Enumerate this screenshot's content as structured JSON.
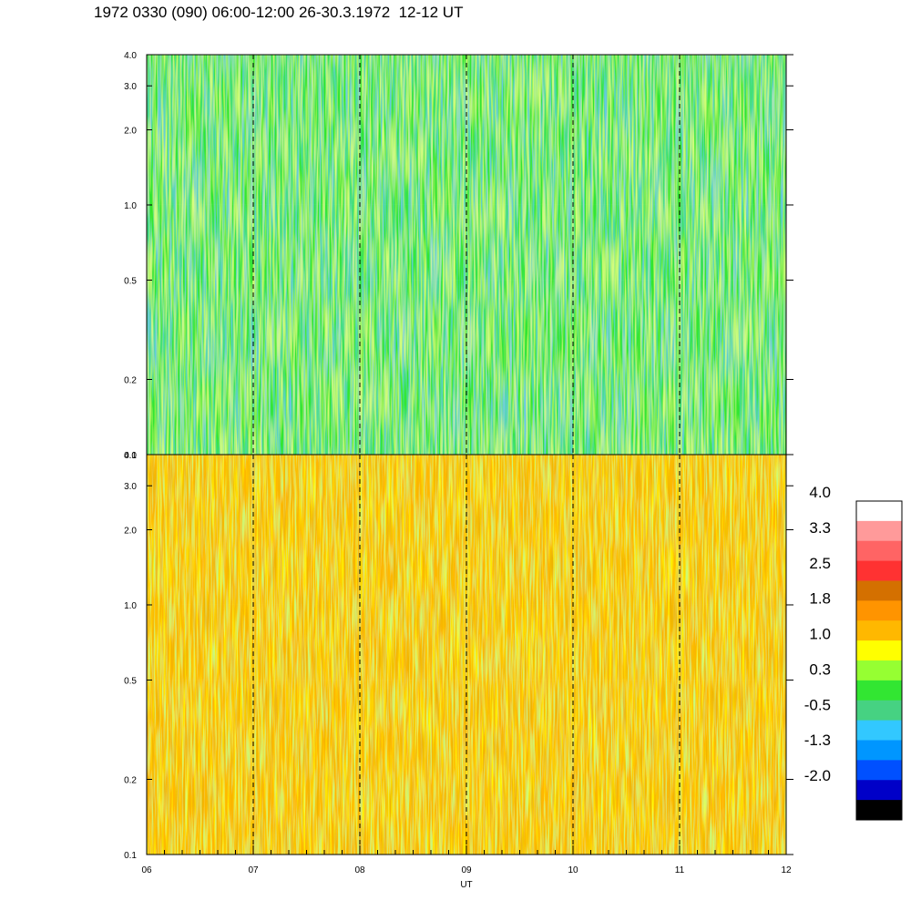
{
  "title": "1972 0330 (090) 06:00-12:00 26-30.3.1972  12-12 UT",
  "chart_data": {
    "type": "heatmap",
    "title": "1972 0330 (090) 06:00-12:00 26-30.3.1972  12-12 UT",
    "xlabel": "UT",
    "x_ticks": [
      "06",
      "07",
      "08",
      "09",
      "10",
      "11",
      "12"
    ],
    "xlim": [
      6,
      12
    ],
    "y_scale": "log",
    "ylim": [
      0.1,
      4.0
    ],
    "y_ticks": [
      {
        "value": 0.1,
        "label": "0.1"
      },
      {
        "value": 0.2,
        "label": "0.2"
      },
      {
        "value": 0.5,
        "label": "0.5"
      },
      {
        "value": 1.0,
        "label": "1.0"
      },
      {
        "value": 2.0,
        "label": "2.0"
      },
      {
        "value": 3.0,
        "label": "3.0"
      },
      {
        "value": 4.0,
        "label": "4.0"
      }
    ],
    "hour_markers": [
      7,
      8,
      9,
      10,
      11
    ],
    "panels": [
      {
        "name": "upper",
        "dominant_level_by_frequency": [
          {
            "freq_range": [
              0.1,
              0.5
            ],
            "level": 0.3
          },
          {
            "freq_range": [
              0.5,
              1.0
            ],
            "level": 0.5
          },
          {
            "freq_range": [
              1.0,
              4.0
            ],
            "level": 0.6
          }
        ]
      },
      {
        "name": "lower",
        "dominant_level_by_frequency": [
          {
            "freq_range": [
              0.1,
              0.5
            ],
            "level": 1.6
          },
          {
            "freq_range": [
              0.5,
              1.0
            ],
            "level": 1.5
          },
          {
            "freq_range": [
              1.0,
              4.0
            ],
            "level": 1.5
          }
        ]
      }
    ],
    "colorbar": {
      "labels": [
        "4.0",
        "3.3",
        "2.5",
        "1.8",
        "1.0",
        "0.3",
        "-0.5",
        "-1.3",
        "-2.0"
      ],
      "range": [
        -2.0,
        4.0
      ],
      "colors": [
        "#ffffff",
        "#ff9a9a",
        "#ff6464",
        "#ff3232",
        "#d47000",
        "#ff9400",
        "#ffb800",
        "#ffff00",
        "#96ff32",
        "#32e632",
        "#46d282",
        "#32c8ff",
        "#0096ff",
        "#0050ff",
        "#0000c8",
        "#000000"
      ]
    }
  }
}
